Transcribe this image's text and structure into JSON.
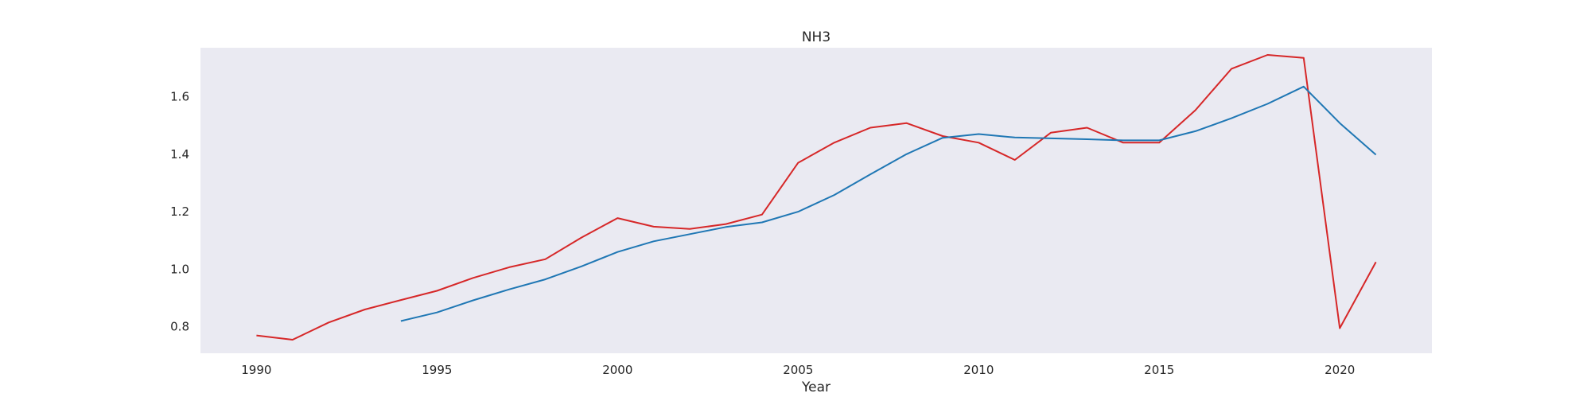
{
  "chart_data": {
    "type": "line",
    "title": "NH3",
    "xlabel": "Year",
    "ylabel": "",
    "xlim": [
      1988.45,
      2022.55
    ],
    "ylim": [
      0.708,
      1.77
    ],
    "x_ticks": [
      1990,
      1995,
      2000,
      2005,
      2010,
      2015,
      2020
    ],
    "y_ticks": [
      0.8,
      1.0,
      1.2,
      1.4,
      1.6
    ],
    "y_tick_labels": [
      "0.8",
      "1.0",
      "1.2",
      "1.4",
      "1.6"
    ],
    "grid": false,
    "legend": "none",
    "background_color": "#eaeaf2",
    "series": [
      {
        "color": "#d62728",
        "x": [
          1990,
          1991,
          1992,
          1993,
          1994,
          1995,
          1996,
          1997,
          1998,
          1999,
          2000,
          2001,
          2002,
          2003,
          2004,
          2005,
          2006,
          2007,
          2008,
          2009,
          2010,
          2011,
          2012,
          2013,
          2014,
          2015,
          2016,
          2017,
          2018,
          2019,
          2020,
          2021
        ],
        "y": [
          0.77,
          0.755,
          0.815,
          0.86,
          0.893,
          0.925,
          0.97,
          1.007,
          1.035,
          1.11,
          1.178,
          1.148,
          1.14,
          1.157,
          1.19,
          1.37,
          1.44,
          1.492,
          1.508,
          1.463,
          1.44,
          1.38,
          1.475,
          1.492,
          1.44,
          1.44,
          1.553,
          1.697,
          1.745,
          1.735,
          0.795,
          1.025
        ]
      },
      {
        "color": "#1f77b4",
        "x": [
          1994,
          1995,
          1996,
          1997,
          1998,
          1999,
          2000,
          2001,
          2002,
          2003,
          2004,
          2005,
          2006,
          2007,
          2008,
          2009,
          2010,
          2011,
          2012,
          2013,
          2014,
          2015,
          2016,
          2017,
          2018,
          2019,
          2020,
          2021
        ],
        "y": [
          0.82,
          0.85,
          0.892,
          0.93,
          0.965,
          1.01,
          1.06,
          1.097,
          1.122,
          1.147,
          1.163,
          1.2,
          1.258,
          1.33,
          1.4,
          1.457,
          1.47,
          1.458,
          1.455,
          1.452,
          1.448,
          1.448,
          1.48,
          1.525,
          1.575,
          1.635,
          1.508,
          1.398
        ]
      }
    ]
  }
}
